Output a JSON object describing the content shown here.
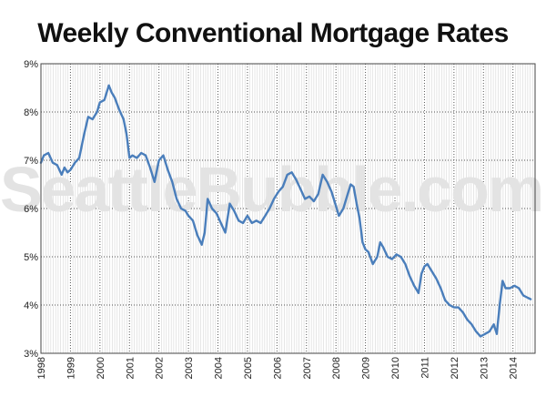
{
  "chart_data": {
    "type": "line",
    "title": "Weekly Conventional Mortgage Rates",
    "watermark": "SeattleBubble.com",
    "xlabel": "",
    "ylabel": "",
    "xlim": [
      1998,
      2014.75
    ],
    "ylim": [
      3,
      9
    ],
    "x_ticks": [
      "1998",
      "1999",
      "2000",
      "2001",
      "2002",
      "2003",
      "2004",
      "2005",
      "2006",
      "2007",
      "2008",
      "2009",
      "2010",
      "2011",
      "2012",
      "2013",
      "2014"
    ],
    "y_ticks": [
      "3%",
      "4%",
      "5%",
      "6%",
      "7%",
      "8%",
      "9%"
    ],
    "grid": {
      "major": "dotted",
      "minor": "monthly"
    },
    "line_color": "#4a7ebb",
    "series": [
      {
        "name": "",
        "x": [
          1998.0,
          1998.1,
          1998.25,
          1998.4,
          1998.55,
          1998.7,
          1998.8,
          1998.9,
          1999.0,
          1999.15,
          1999.3,
          1999.45,
          1999.6,
          1999.75,
          1999.9,
          2000.0,
          2000.15,
          2000.3,
          2000.4,
          2000.5,
          2000.65,
          2000.8,
          2000.9,
          2001.0,
          2001.1,
          2001.25,
          2001.4,
          2001.55,
          2001.7,
          2001.85,
          2002.0,
          2002.15,
          2002.3,
          2002.45,
          2002.6,
          2002.75,
          2002.9,
          2003.0,
          2003.15,
          2003.3,
          2003.45,
          2003.55,
          2003.65,
          2003.8,
          2003.95,
          2004.1,
          2004.25,
          2004.4,
          2004.55,
          2004.7,
          2004.85,
          2005.0,
          2005.15,
          2005.3,
          2005.45,
          2005.6,
          2005.75,
          2005.9,
          2006.05,
          2006.2,
          2006.35,
          2006.5,
          2006.65,
          2006.8,
          2006.95,
          2007.1,
          2007.25,
          2007.4,
          2007.55,
          2007.7,
          2007.85,
          2008.0,
          2008.1,
          2008.25,
          2008.4,
          2008.5,
          2008.6,
          2008.7,
          2008.8,
          2008.9,
          2009.0,
          2009.1,
          2009.25,
          2009.4,
          2009.5,
          2009.6,
          2009.75,
          2009.9,
          2010.05,
          2010.2,
          2010.35,
          2010.5,
          2010.65,
          2010.8,
          2010.9,
          2011.0,
          2011.1,
          2011.25,
          2011.4,
          2011.55,
          2011.7,
          2011.85,
          2012.0,
          2012.15,
          2012.3,
          2012.45,
          2012.6,
          2012.75,
          2012.9,
          2013.05,
          2013.2,
          2013.35,
          2013.45,
          2013.55,
          2013.65,
          2013.75,
          2013.9,
          2014.05,
          2014.2,
          2014.35,
          2014.5,
          2014.6
        ],
        "values": [
          6.95,
          7.1,
          7.15,
          6.95,
          6.9,
          6.7,
          6.85,
          6.75,
          6.8,
          6.95,
          7.05,
          7.5,
          7.9,
          7.85,
          8.0,
          8.2,
          8.25,
          8.55,
          8.4,
          8.3,
          8.05,
          7.85,
          7.55,
          7.05,
          7.1,
          7.05,
          7.15,
          7.1,
          6.85,
          6.55,
          7.0,
          7.1,
          6.8,
          6.55,
          6.2,
          6.0,
          5.95,
          5.85,
          5.75,
          5.45,
          5.25,
          5.5,
          6.2,
          6.0,
          5.9,
          5.7,
          5.5,
          6.1,
          5.95,
          5.75,
          5.7,
          5.85,
          5.7,
          5.75,
          5.7,
          5.85,
          6.0,
          6.2,
          6.35,
          6.45,
          6.7,
          6.75,
          6.6,
          6.4,
          6.2,
          6.25,
          6.15,
          6.3,
          6.7,
          6.55,
          6.35,
          6.05,
          5.85,
          6.0,
          6.3,
          6.5,
          6.45,
          6.1,
          5.8,
          5.3,
          5.15,
          5.1,
          4.85,
          5.0,
          5.3,
          5.2,
          5.0,
          4.95,
          5.05,
          5.0,
          4.85,
          4.6,
          4.4,
          4.25,
          4.65,
          4.8,
          4.85,
          4.7,
          4.55,
          4.35,
          4.1,
          4.0,
          3.95,
          3.95,
          3.85,
          3.7,
          3.6,
          3.45,
          3.35,
          3.4,
          3.45,
          3.6,
          3.4,
          4.0,
          4.5,
          4.35,
          4.35,
          4.4,
          4.35,
          4.2,
          4.15,
          4.12
        ]
      }
    ]
  }
}
